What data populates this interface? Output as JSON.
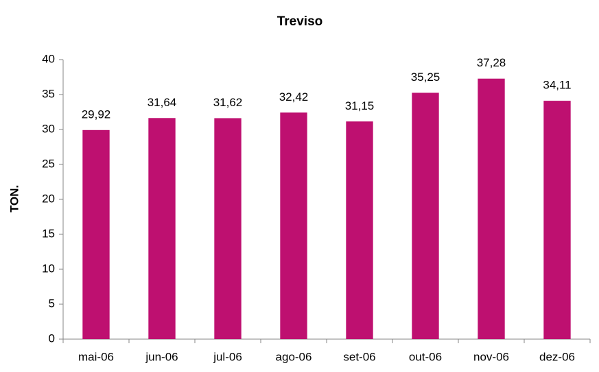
{
  "chart_data": {
    "type": "bar",
    "title": "Treviso",
    "y_label": "TON.",
    "categories": [
      "mai-06",
      "jun-06",
      "jul-06",
      "ago-06",
      "set-06",
      "out-06",
      "nov-06",
      "dez-06"
    ],
    "values": [
      29.92,
      31.64,
      31.62,
      32.42,
      31.15,
      35.25,
      37.28,
      34.11
    ],
    "value_labels": [
      "29,92",
      "31,64",
      "31,62",
      "32,42",
      "31,15",
      "35,25",
      "37,28",
      "34,11"
    ],
    "color": "#be1070",
    "ylim": [
      0,
      40
    ],
    "yticks": [
      0,
      5,
      10,
      15,
      20,
      25,
      30,
      35,
      40
    ],
    "grid": false
  }
}
